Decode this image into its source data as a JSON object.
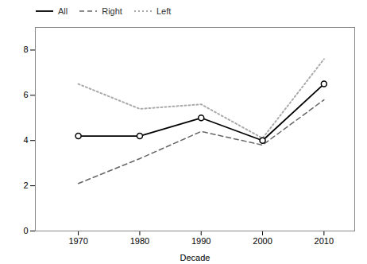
{
  "chart_data": {
    "type": "line",
    "x": [
      1970,
      1980,
      1990,
      2000,
      2010
    ],
    "series": [
      {
        "name": "All",
        "color": "#000000",
        "values": [
          4.2,
          4.2,
          5.0,
          4.0,
          6.5
        ],
        "line_style": "solid",
        "marker": "circle"
      },
      {
        "name": "Right",
        "color": "#666666",
        "values": [
          2.1,
          3.2,
          4.4,
          3.8,
          5.8
        ],
        "line_style": "dashed"
      },
      {
        "name": "Left",
        "color": "#aaaaaa",
        "values": [
          6.5,
          5.4,
          5.6,
          4.1,
          7.6
        ],
        "line_style": "dotted"
      }
    ],
    "xlabel": "Decade",
    "xlim": [
      1963,
      2015
    ],
    "xticks": [
      1970,
      1980,
      1990,
      2000,
      2010
    ],
    "ylim": [
      0,
      9
    ],
    "yticks": [
      0,
      2,
      4,
      6,
      8
    ],
    "legend": "upper left"
  }
}
